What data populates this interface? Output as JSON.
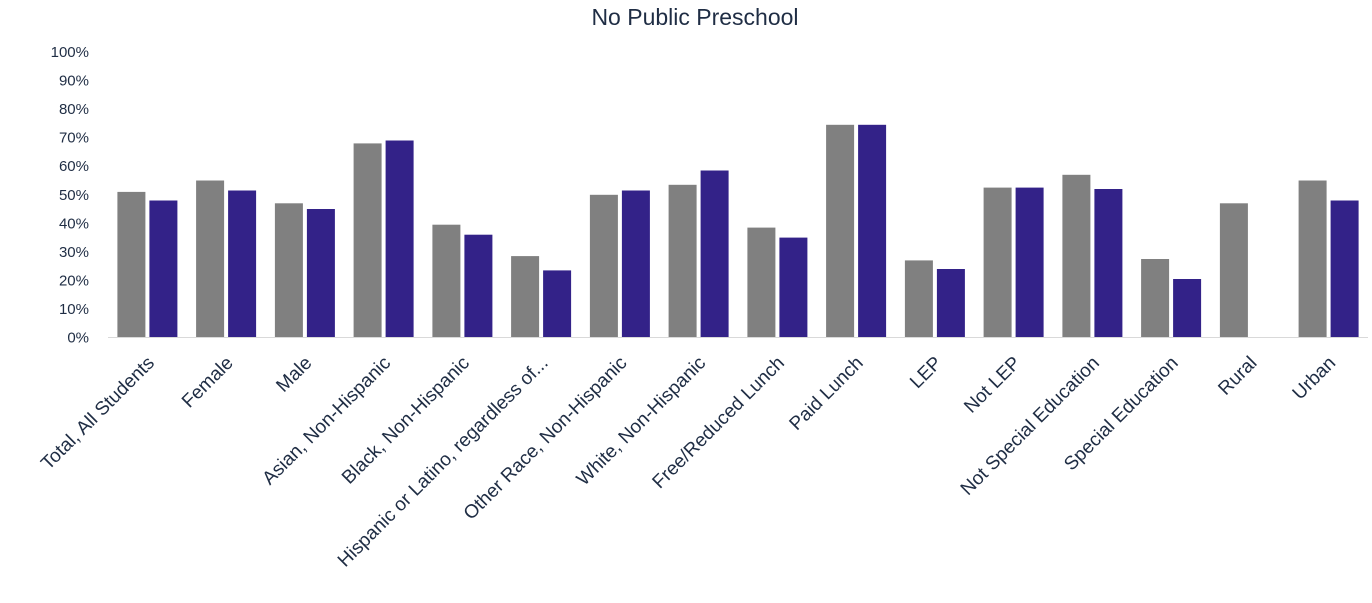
{
  "chart_data": {
    "type": "bar",
    "title": "No Public Preschool",
    "xlabel": "",
    "ylabel": "",
    "ylim": [
      0,
      100
    ],
    "y_ticks": [
      "0%",
      "10%",
      "20%",
      "30%",
      "40%",
      "50%",
      "60%",
      "70%",
      "80%",
      "90%",
      "100%"
    ],
    "grid": false,
    "legend": "none",
    "categories": [
      "Total, All Students",
      "Female",
      "Male",
      "Asian, Non-Hispanic",
      "Black, Non-Hispanic",
      "Hispanic or Latino, regardless of...",
      "Other Race, Non-Hispanic",
      "White, Non-Hispanic",
      "Free/Reduced Lunch",
      "Paid Lunch",
      "LEP",
      "Not LEP",
      "Not Special Education",
      "Special Education",
      "Rural",
      "Urban"
    ],
    "series": [
      {
        "color": "#808080",
        "values": [
          51,
          55,
          47,
          68,
          39.5,
          28.5,
          50,
          53.5,
          38.5,
          74.5,
          27,
          52.5,
          57,
          27.5,
          47,
          55
        ]
      },
      {
        "color": "#332288",
        "values": [
          48,
          51.5,
          45,
          69,
          36,
          23.5,
          51.5,
          58.5,
          35,
          74.5,
          24,
          52.5,
          52,
          20.5,
          null,
          48
        ]
      }
    ]
  }
}
